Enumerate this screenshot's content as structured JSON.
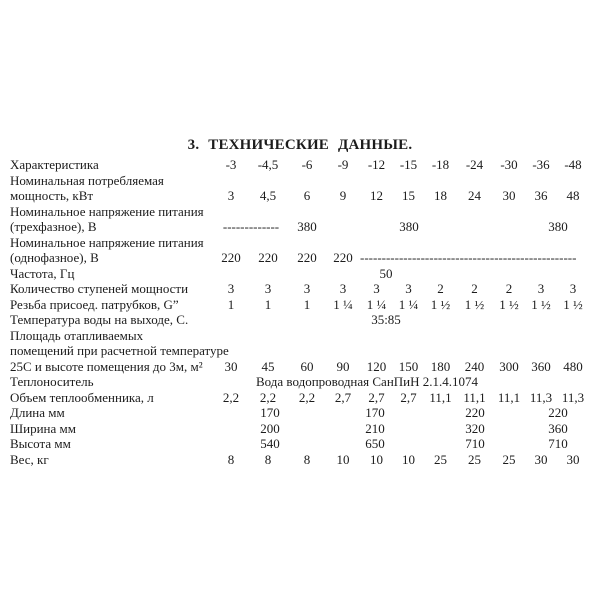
{
  "page": {
    "title": "3. ТЕХНИЧЕСКИЕ ДАННЫЕ."
  },
  "colors": {
    "text": "#1c1c1c",
    "background": "#ffffff"
  },
  "table": {
    "columns": [
      "-3",
      "-4,5",
      "-6",
      "-9",
      "-12",
      "-15",
      "-18",
      "-24",
      "-30",
      "-36",
      "-48"
    ],
    "rows": [
      {
        "label_lines": [
          "Характеристика"
        ],
        "cells": [
          {
            "t": "-3"
          },
          {
            "t": "-4,5"
          },
          {
            "t": "-6"
          },
          {
            "t": "-9"
          },
          {
            "t": "-12"
          },
          {
            "t": "-15"
          },
          {
            "t": "-18"
          },
          {
            "t": "-24"
          },
          {
            "t": "-30"
          },
          {
            "t": "-36"
          },
          {
            "t": "-48"
          }
        ]
      },
      {
        "label_lines": [
          "Номинальная потребляемая",
          "мощность, кВт"
        ],
        "cells": [
          {
            "t": "3"
          },
          {
            "t": "4,5"
          },
          {
            "t": "6"
          },
          {
            "t": "9"
          },
          {
            "t": "12"
          },
          {
            "t": "15"
          },
          {
            "t": "18"
          },
          {
            "t": "24"
          },
          {
            "t": "30"
          },
          {
            "t": "36"
          },
          {
            "t": "48"
          }
        ]
      },
      {
        "label_lines": [
          "Номинальное напряжение питания",
          "(трехфазное), В"
        ],
        "cells": [
          {
            "t": "-------------",
            "s": 2
          },
          {
            "t": "380"
          },
          {
            "t": "380",
            "s": 5
          },
          {
            "t": ""
          },
          {
            "t": "380",
            "s": 2
          }
        ]
      },
      {
        "label_lines": [
          "Номинальное напряжение питания",
          "(однофазное), В"
        ],
        "cells": [
          {
            "t": "220"
          },
          {
            "t": "220"
          },
          {
            "t": "220"
          },
          {
            "t": "220"
          },
          {
            "t": "--------------------------------------------------",
            "s": 7,
            "cls": "left"
          }
        ]
      },
      {
        "label_lines": [
          "Частота, Гц"
        ],
        "cells": [
          {
            "t": "50",
            "s": 11,
            "cls": "shift"
          }
        ]
      },
      {
        "label_lines": [
          "Количество ступеней мощности"
        ],
        "cells": [
          {
            "t": "3"
          },
          {
            "t": "3"
          },
          {
            "t": "3"
          },
          {
            "t": "3"
          },
          {
            "t": "3"
          },
          {
            "t": "3"
          },
          {
            "t": "2"
          },
          {
            "t": "2"
          },
          {
            "t": "2"
          },
          {
            "t": "3"
          },
          {
            "t": "3"
          }
        ]
      },
      {
        "label_lines": [
          "Резьба присоед. патрубков, G”"
        ],
        "cells": [
          {
            "t": "1"
          },
          {
            "t": "1"
          },
          {
            "t": "1"
          },
          {
            "t": "1 ¼"
          },
          {
            "t": "1 ¼"
          },
          {
            "t": "1 ¼"
          },
          {
            "t": "1 ½"
          },
          {
            "t": "1 ½"
          },
          {
            "t": "1 ½"
          },
          {
            "t": "1 ½"
          },
          {
            "t": "1 ½"
          }
        ]
      },
      {
        "label_lines": [
          "Температура воды на выходе, С."
        ],
        "cells": [
          {
            "t": "35:85",
            "s": 11,
            "cls": "shift"
          }
        ]
      },
      {
        "label_lines": [
          "Площадь отапливаемых",
          "помещений при расчетной температуре",
          "25С и высоте помещения до 3м, м²"
        ],
        "cells": [
          {
            "t": "30"
          },
          {
            "t": "45"
          },
          {
            "t": "60"
          },
          {
            "t": "90"
          },
          {
            "t": "120"
          },
          {
            "t": "150"
          },
          {
            "t": "180"
          },
          {
            "t": "240"
          },
          {
            "t": "300"
          },
          {
            "t": "360"
          },
          {
            "t": "480"
          }
        ]
      },
      {
        "label_lines": [
          "Теплоноситель"
        ],
        "cells": [
          {
            "t": "Вода водопроводная СанПиН 2.1.4.1074",
            "s": 11,
            "cls": "shift-big"
          }
        ]
      },
      {
        "label_lines": [
          "Объем теплообменника, л"
        ],
        "cells": [
          {
            "t": "2,2"
          },
          {
            "t": "2,2"
          },
          {
            "t": "2,2"
          },
          {
            "t": "2,7"
          },
          {
            "t": "2,7"
          },
          {
            "t": "2,7"
          },
          {
            "t": "11,1"
          },
          {
            "t": "11,1"
          },
          {
            "t": "11,1"
          },
          {
            "t": "11,3"
          },
          {
            "t": "11,3"
          }
        ]
      },
      {
        "label_lines": [
          "Длина мм"
        ],
        "cells": [
          {
            "t": "170",
            "s": 3
          },
          {
            "t": "170",
            "s": 3
          },
          {
            "t": "220",
            "s": 3
          },
          {
            "t": "220",
            "s": 2
          }
        ]
      },
      {
        "label_lines": [
          "Ширина мм"
        ],
        "cells": [
          {
            "t": "200",
            "s": 3
          },
          {
            "t": "210",
            "s": 3
          },
          {
            "t": "320",
            "s": 3
          },
          {
            "t": "360",
            "s": 2
          }
        ]
      },
      {
        "label_lines": [
          "Высота мм"
        ],
        "cells": [
          {
            "t": "540",
            "s": 3
          },
          {
            "t": "650",
            "s": 3
          },
          {
            "t": "710",
            "s": 3
          },
          {
            "t": "710",
            "s": 2
          }
        ]
      },
      {
        "label_lines": [
          "Вес, кг"
        ],
        "cells": [
          {
            "t": "8"
          },
          {
            "t": "8"
          },
          {
            "t": "8"
          },
          {
            "t": "10"
          },
          {
            "t": "10"
          },
          {
            "t": "10"
          },
          {
            "t": "25"
          },
          {
            "t": "25"
          },
          {
            "t": "25"
          },
          {
            "t": "30"
          },
          {
            "t": "30"
          }
        ]
      }
    ]
  }
}
